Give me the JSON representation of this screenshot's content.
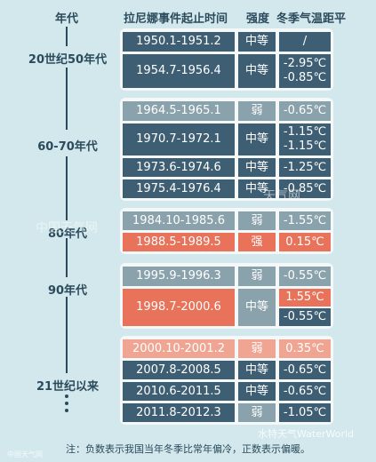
{
  "headers": {
    "era": "年代",
    "period": "拉尼娜事件起止时间",
    "strength": "强度",
    "temp": "冬季气温距平"
  },
  "eras": {
    "e20": "20世纪50年代",
    "e60": "60-70年代",
    "e80": "80年代",
    "e90": "90年代",
    "e21": "21世纪以来"
  },
  "rows": [
    {
      "period": "1950.1-1951.2",
      "strength": "中等",
      "temp": "/"
    },
    {
      "period": "1954.7-1956.4",
      "strength": "中等",
      "temp": "-2.95℃\n-0.85℃"
    },
    {
      "period": "1964.5-1965.1",
      "strength": "弱",
      "temp": "-0.65℃"
    },
    {
      "period": "1970.7-1972.1",
      "strength": "中等",
      "temp": "-1.15℃\n-1.15℃"
    },
    {
      "period": "1973.6-1974.6",
      "strength": "中等",
      "temp": "-1.25℃"
    },
    {
      "period": "1975.4-1976.4",
      "strength": "中等",
      "temp": "-0.85℃"
    },
    {
      "period": "1984.10-1985.6",
      "strength": "弱",
      "temp": "-1.55℃"
    },
    {
      "period": "1988.5-1989.5",
      "strength": "强",
      "temp": "0.15℃"
    },
    {
      "period": "1995.9-1996.3",
      "strength": "弱",
      "temp": "-0.55℃"
    },
    {
      "period": "1998.7-2000.6",
      "strength": "中等",
      "temp_a": "1.55℃",
      "temp_b": "-0.55℃"
    },
    {
      "period": "2000.10-2001.2",
      "strength": "弱",
      "temp": "0.35℃"
    },
    {
      "period": "2007.8-2008.5",
      "strength": "中等",
      "temp": "-0.65℃"
    },
    {
      "period": "2010.6-2011.5",
      "strength": "中等",
      "temp": "-0.65℃"
    },
    {
      "period": "2011.8-2012.3",
      "strength": "弱",
      "temp": "-1.05℃"
    }
  ],
  "note": "注：负数表示我国当年冬季比常年偏冷，正数表示偏暖。",
  "watermark_left": "中国天气网",
  "watermark_right": "天气网",
  "watermark_credit": "水特天气WaterWorld",
  "watermark_small": "中国天气网",
  "colors": {
    "navy": "#3e5e73",
    "grey": "#8aa2ab",
    "red": "#e8735a",
    "pink": "#f0a592",
    "bg": "#d2e8ec"
  }
}
